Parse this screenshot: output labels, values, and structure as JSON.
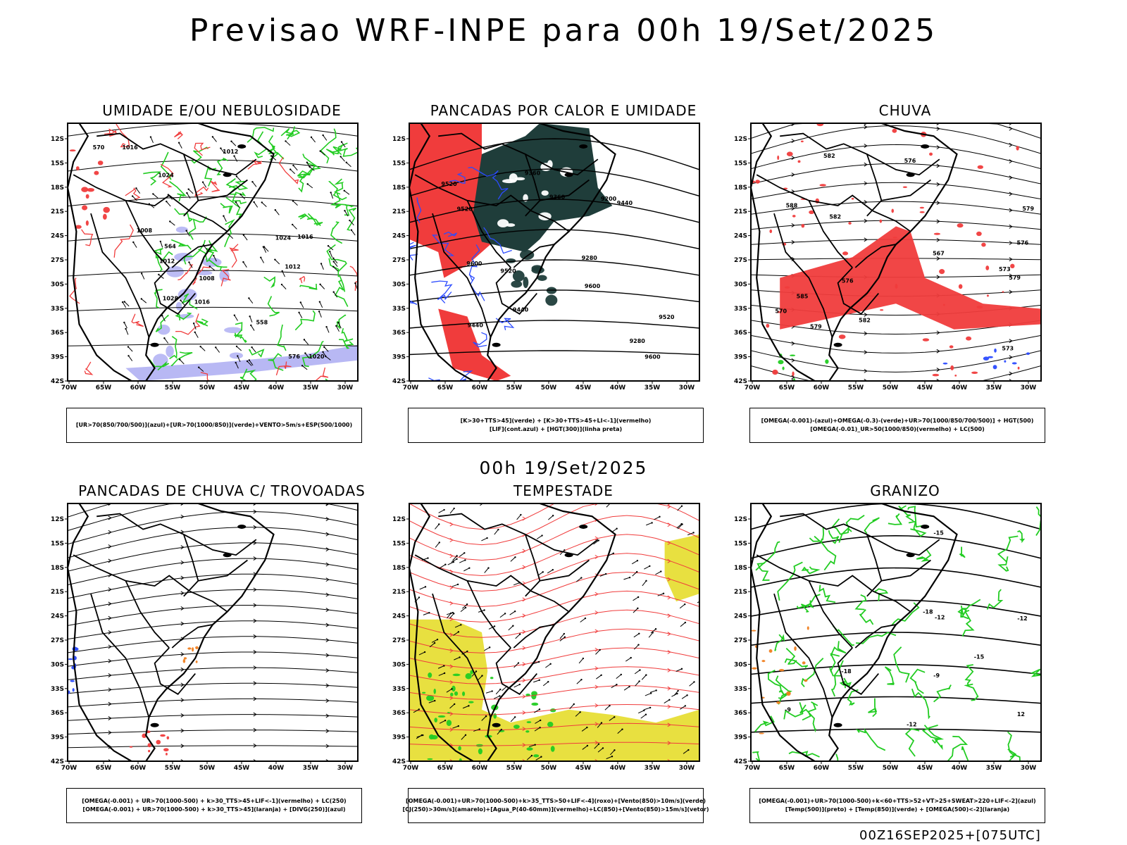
{
  "main_title": "Previsao WRF-INPE  para 00h 19/Set/2025",
  "subtitle": "00h 19/Set/2025",
  "footer": "00Z16SEP2025+[075UTC]",
  "lat_labels": [
    "12S",
    "15S",
    "18S",
    "21S",
    "24S",
    "27S",
    "30S",
    "33S",
    "36S",
    "39S",
    "42S"
  ],
  "lon_labels": [
    "70W",
    "65W",
    "60W",
    "55W",
    "50W",
    "45W",
    "40W",
    "35W",
    "30W"
  ],
  "panels": [
    {
      "title": "UMIDADE E/OU NEBULOSIDADE",
      "legend": [
        "[UR>70(850/700/500)](azul)+[UR>70(1000/850)](verde)+VENTO>5m/s+ESP(500/1000)"
      ],
      "contour_labels": [
        "1008",
        "1008",
        "1016",
        "1012",
        "1020",
        "1024",
        "1016",
        "1012",
        "1028",
        "1024",
        "1016",
        "1012",
        "570",
        "576",
        "564",
        "558"
      ]
    },
    {
      "title": "PANCADAS POR CALOR E UMIDADE",
      "legend": [
        "[K>30+TTS>45](verde) + [K>30+TTS>45+LI<-1](vermelho)",
        "[LIF](cont.azul) + [HGT(300)](linha preta)"
      ],
      "contour_labels": [
        "9600",
        "9600",
        "9600",
        "9520",
        "9520",
        "9520",
        "9440",
        "9520",
        "9440",
        "9360",
        "9200",
        "9280",
        "9440",
        "9360",
        "9280"
      ]
    },
    {
      "title": "CHUVA",
      "legend": [
        "[OMEGA(-0.001)-(azul)+OMEGA(-0.3)-(verde)+UR>70(1000/850/700/500)] + HGT(500)",
        "[OMEGA(-0.01)_UR>50(1000/850)(vermelho) + LC(500)"
      ],
      "contour_labels": [
        "582",
        "585",
        "588",
        "582",
        "579",
        "576",
        "573",
        "576",
        "579",
        "582",
        "576",
        "570",
        "567",
        "579",
        "573"
      ]
    },
    {
      "title": "PANCADAS DE CHUVA C/ TROVOADAS",
      "legend": [
        "[OMEGA(-0.001) + UR>70(1000-500) + k>30_TTS>45+LIF<-1](vermelho) + LC(250)",
        "[OMEGA(-0.001) + UR>70(1000-500) + k>30_TTS>45](laranja) + [DIVG(250)](azul)"
      ],
      "contour_labels": []
    },
    {
      "title": "TEMPESTADE",
      "legend": [
        "[OMEGA(-0.001)+UR>70(1000-500)+k>35_TTS>50+LIF<-4](roxo)+[Vento(850)>10m/s](verde)",
        "[CJ(250)>30m/s](amarelo)+[Agua_P(40-60mm)](vermelho)+LC(850)+[Vento(850)>15m/s](vetor)"
      ],
      "contour_labels": []
    },
    {
      "title": "GRANIZO",
      "legend": [
        "[OMEGA(-0.001)+UR>70(1000-500)+k<60+TTS>52+VT>25+SWEAT>220+LIF<-2](azul)",
        "[Temp(500)](preto) + [Temp(850)](verde) + [OMEGA(500)<-2](laranja)"
      ],
      "contour_labels": [
        "-9",
        "-9",
        "-12",
        "-12",
        "-12",
        "-15",
        "-15",
        "-18",
        "-18",
        "12"
      ]
    }
  ],
  "colors": {
    "red": "#f03c3c",
    "green": "#22cc22",
    "blue": "#2b4bff",
    "lavender": "#b8b8f4",
    "darkteal": "#1f3d3a",
    "yellow": "#e8e040",
    "orange": "#f08020"
  }
}
